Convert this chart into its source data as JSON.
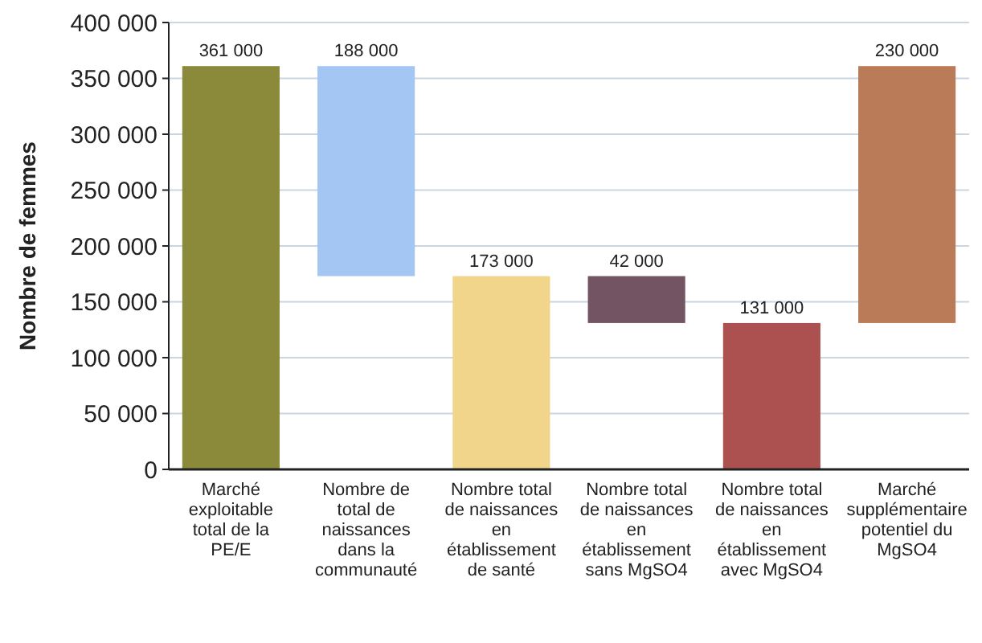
{
  "chart_data": {
    "type": "bar",
    "ylabel": "Nombre de femmes",
    "categories": [
      "Marché exploitable total de la PE/E",
      "Nombre de total de naissances dans la communauté",
      "Nombre total de naissances en établissement de santé",
      "Nombre total de naissances en établissement sans MgSO4",
      "Nombre total de naissances en établissement avec MgSO4",
      "Marché supplémentaire potentiel du MgSO4"
    ],
    "values": [
      361000,
      188000,
      173000,
      42000,
      131000,
      230000
    ],
    "base": [
      0,
      173000,
      0,
      131000,
      0,
      131000
    ],
    "colors": [
      "#8b893a",
      "#a3c6f3",
      "#f0d58b",
      "#735463",
      "#ad5050",
      "#b97b58"
    ],
    "value_labels": [
      "361 000",
      "188 000",
      "173 000",
      "42 000",
      "131 000",
      "230 000"
    ],
    "ylim": [
      0,
      400000
    ],
    "yticks": [
      {
        "value": 0,
        "label": "0"
      },
      {
        "value": 50000,
        "label": "50 000"
      },
      {
        "value": 100000,
        "label": "100 000"
      },
      {
        "value": 150000,
        "label": "150 000"
      },
      {
        "value": 200000,
        "label": "200 000"
      },
      {
        "value": 250000,
        "label": "250 000"
      },
      {
        "value": 300000,
        "label": "300 000"
      },
      {
        "value": 350000,
        "label": "350 000"
      },
      {
        "value": 400000,
        "label": "400 000"
      }
    ],
    "grid": "y"
  }
}
